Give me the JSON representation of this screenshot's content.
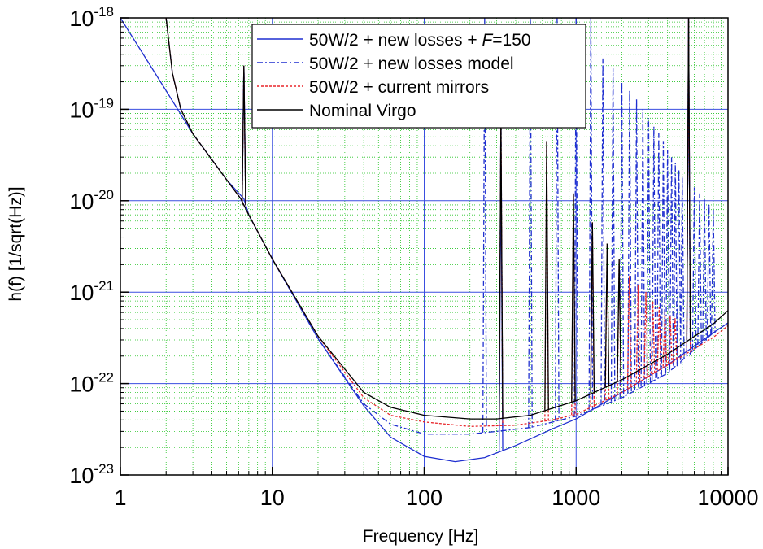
{
  "chart_data": {
    "type": "line",
    "xlabel": "Frequency [Hz]",
    "ylabel": "h(f) [1/sqrt(Hz)]",
    "x_scale": "log",
    "y_scale": "log",
    "xlim": [
      1,
      10000
    ],
    "ylim": [
      1e-23,
      1e-18
    ],
    "grid": true,
    "legend_position": "top",
    "x_ticks": [
      {
        "value": 1,
        "label": "1"
      },
      {
        "value": 10,
        "label": "10"
      },
      {
        "value": 100,
        "label": "100"
      },
      {
        "value": 1000,
        "label": "1000"
      },
      {
        "value": 10000,
        "label": "10000"
      }
    ],
    "y_ticks": [
      {
        "value": 1e-23,
        "base": "10",
        "exp": "-23"
      },
      {
        "value": 1e-22,
        "base": "10",
        "exp": "-22"
      },
      {
        "value": 1e-21,
        "base": "10",
        "exp": "-21"
      },
      {
        "value": 1e-20,
        "base": "10",
        "exp": "-20"
      },
      {
        "value": 1e-19,
        "base": "10",
        "exp": "-19"
      },
      {
        "value": 1e-18,
        "base": "10",
        "exp": "-18"
      }
    ],
    "series": [
      {
        "name_parts": [
          "50W/2 + new losses + ",
          "F",
          "=150"
        ],
        "color": "#1f2fd0",
        "dash": "solid",
        "points": [
          [
            1,
            1e-18
          ],
          [
            2,
            1.6e-19
          ],
          [
            3,
            5.4e-20
          ],
          [
            5,
            1.7e-20
          ],
          [
            6.5,
            1.05e-20
          ],
          [
            7,
            7e-21
          ],
          [
            10,
            2.3e-21
          ],
          [
            20,
            3.1e-22
          ],
          [
            40,
            5.7e-23
          ],
          [
            60,
            2.6e-23
          ],
          [
            100,
            1.6e-23
          ],
          [
            160,
            1.4e-23
          ],
          [
            250,
            1.55e-23
          ],
          [
            400,
            2.1e-23
          ],
          [
            700,
            3.2e-23
          ],
          [
            1000,
            4.1e-23
          ],
          [
            2000,
            8e-23
          ],
          [
            4000,
            1.6e-22
          ],
          [
            8000,
            3.6e-22
          ],
          [
            10000,
            4.6e-22
          ]
        ],
        "peaks": [
          [
            6.5,
            3e-19
          ],
          [
            320,
            3e-20
          ],
          [
            5500,
            1e-18
          ]
        ]
      },
      {
        "name": "50W/2 + new losses model",
        "color": "#1f2fd0",
        "dash": "dashdot",
        "points": [
          [
            2,
            1e-18
          ],
          [
            2.2,
            2.5e-19
          ],
          [
            2.5,
            1e-19
          ],
          [
            3,
            5.4e-20
          ],
          [
            5,
            1.7e-20
          ],
          [
            6.2,
            1.05e-20
          ],
          [
            7,
            7e-21
          ],
          [
            10,
            2.3e-21
          ],
          [
            20,
            3.1e-22
          ],
          [
            40,
            6e-23
          ],
          [
            60,
            3.6e-23
          ],
          [
            100,
            2.8e-23
          ],
          [
            200,
            2.8e-23
          ],
          [
            300,
            3e-23
          ],
          [
            500,
            3.3e-23
          ],
          [
            1000,
            4.4e-23
          ],
          [
            2000,
            7e-23
          ],
          [
            4000,
            1.3e-22
          ],
          [
            8000,
            3.6e-22
          ]
        ],
        "peaks": [
          [
            6.5,
            3e-19
          ],
          [
            250,
            1e-18
          ],
          [
            320,
            1e-19
          ],
          [
            500,
            1e-18
          ],
          [
            750,
            1e-18
          ],
          [
            1000,
            1e-18
          ],
          [
            1250,
            1e-18
          ],
          [
            1500,
            3.6e-19
          ],
          [
            1750,
            2.8e-19
          ],
          [
            2000,
            2e-19
          ],
          [
            2250,
            1.6e-19
          ],
          [
            2500,
            1.3e-19
          ],
          [
            2750,
            1e-19
          ],
          [
            3000,
            8e-20
          ],
          [
            3250,
            6.5e-20
          ],
          [
            3500,
            5.5e-20
          ],
          [
            3750,
            4.5e-20
          ],
          [
            4000,
            3.6e-20
          ],
          [
            4250,
            3e-20
          ],
          [
            4500,
            2.6e-20
          ],
          [
            4750,
            2.2e-20
          ],
          [
            5000,
            1.8e-20
          ],
          [
            5500,
            1e-18
          ],
          [
            6000,
            1.4e-20
          ],
          [
            6500,
            1.2e-20
          ],
          [
            7000,
            1.05e-20
          ],
          [
            7500,
            9e-21
          ],
          [
            8000,
            8e-21
          ]
        ]
      },
      {
        "name": "50W/2 + current mirrors",
        "color": "#e8252a",
        "dash": "dashed",
        "points": [
          [
            2,
            1e-18
          ],
          [
            2.2,
            2.5e-19
          ],
          [
            2.5,
            1e-19
          ],
          [
            3,
            5.4e-20
          ],
          [
            5,
            1.7e-20
          ],
          [
            6.2,
            1.05e-20
          ],
          [
            7,
            7e-21
          ],
          [
            10,
            2.3e-21
          ],
          [
            20,
            3.3e-22
          ],
          [
            40,
            7e-23
          ],
          [
            60,
            4.5e-23
          ],
          [
            100,
            3.8e-23
          ],
          [
            200,
            3.4e-23
          ],
          [
            400,
            3.5e-23
          ],
          [
            700,
            4e-23
          ],
          [
            1000,
            4.6e-23
          ],
          [
            2000,
            8e-23
          ],
          [
            4000,
            1.6e-22
          ],
          [
            8000,
            3.2e-22
          ],
          [
            10000,
            4.3e-22
          ]
        ],
        "peaks": [
          [
            6.5,
            3e-19
          ],
          [
            320,
            8e-20
          ],
          [
            640,
            4.5e-20
          ],
          [
            960,
            1.2e-20
          ],
          [
            1280,
            5.8e-21
          ],
          [
            1600,
            3.4e-21
          ],
          [
            1920,
            2.3e-21
          ],
          [
            2240,
            1.5e-21
          ],
          [
            2560,
            1.2e-21
          ],
          [
            2880,
            1e-21
          ],
          [
            3200,
            8e-22
          ],
          [
            3520,
            6.8e-22
          ],
          [
            3840,
            6e-22
          ],
          [
            4160,
            5.5e-22
          ],
          [
            4480,
            5.2e-22
          ],
          [
            5500,
            1e-18
          ]
        ]
      },
      {
        "name": "Nominal Virgo",
        "color": "#000000",
        "dash": "solid",
        "points": [
          [
            2,
            1e-18
          ],
          [
            2.2,
            2.5e-19
          ],
          [
            2.5,
            1e-19
          ],
          [
            3,
            5.4e-20
          ],
          [
            5,
            1.7e-20
          ],
          [
            6.2,
            1.05e-20
          ],
          [
            7,
            7e-21
          ],
          [
            10,
            2.3e-21
          ],
          [
            20,
            3.3e-22
          ],
          [
            40,
            8e-23
          ],
          [
            60,
            5.5e-23
          ],
          [
            100,
            4.5e-23
          ],
          [
            200,
            4.1e-23
          ],
          [
            300,
            4.1e-23
          ],
          [
            500,
            4.5e-23
          ],
          [
            1000,
            6.5e-23
          ],
          [
            2000,
            1.1e-22
          ],
          [
            4000,
            2.1e-22
          ],
          [
            8000,
            4.5e-22
          ],
          [
            10000,
            6.3e-22
          ]
        ],
        "peaks": [
          [
            6.5,
            3e-19
          ],
          [
            320,
            8e-20
          ],
          [
            640,
            4.5e-20
          ],
          [
            960,
            1.2e-20
          ],
          [
            1280,
            5.8e-21
          ],
          [
            1600,
            3.4e-21
          ],
          [
            1920,
            2.3e-21
          ],
          [
            5500,
            1e-18
          ]
        ]
      }
    ]
  }
}
